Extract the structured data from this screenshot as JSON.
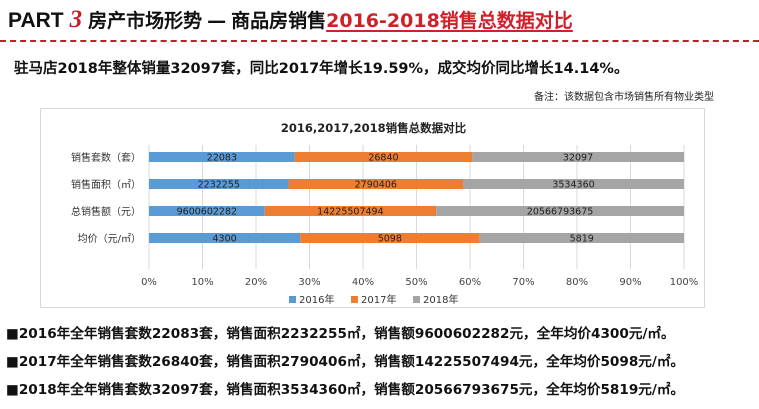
{
  "header": {
    "part": "PART",
    "num": "3",
    "title": "房产市场形势",
    "dash": "—",
    "sub": "商品房销售",
    "highlight": "2016-2018销售总数据对比"
  },
  "summary": "驻马店2018年整体销量32097套，同比2017年增长19.59%，成交均价同比增长14.14%。",
  "note": "备注：该数据包含市场销售所有物业类型",
  "chart_data": {
    "type": "bar",
    "orientation": "horizontal",
    "stacked": "percent",
    "title": "2016,2017,2018销售总数据对比",
    "categories": [
      "销售套数（套）",
      "销售面积（㎡）",
      "总销售额（元）",
      "均价（元/㎡）"
    ],
    "series": [
      {
        "name": "2016年",
        "color": "#5b9bd5",
        "values": [
          22083,
          2232255,
          9600602282,
          4300
        ],
        "labels": [
          "22083",
          "2232255",
          "9600602282",
          "4300"
        ]
      },
      {
        "name": "2017年",
        "color": "#ed7d31",
        "values": [
          26840,
          2790406,
          14225507494,
          5098
        ],
        "labels": [
          "26840",
          "2790406",
          "14225507494",
          "5098"
        ]
      },
      {
        "name": "2018年",
        "color": "#a5a5a5",
        "values": [
          32097,
          3534360,
          20566793675,
          5819
        ],
        "labels": [
          "32097",
          "3534360",
          "20566793675",
          "5819"
        ]
      }
    ],
    "x_ticks": [
      "0%",
      "10%",
      "20%",
      "30%",
      "40%",
      "50%",
      "60%",
      "70%",
      "80%",
      "90%",
      "100%"
    ],
    "xlim": [
      0,
      100
    ],
    "grid": true,
    "legend": "bottom"
  },
  "stats": [
    "■2016年全年销售套数22083套，销售面积2232255㎡，销售额9600602282元，全年均价4300元/㎡。",
    "■2017年全年销售套数26840套，销售面积2790406㎡，销售额14225507494元，全年均价5098元/㎡。",
    "■2018年全年销售套数32097套，销售面积3534360㎡，销售额20566793675元，全年均价5819元/㎡。"
  ]
}
